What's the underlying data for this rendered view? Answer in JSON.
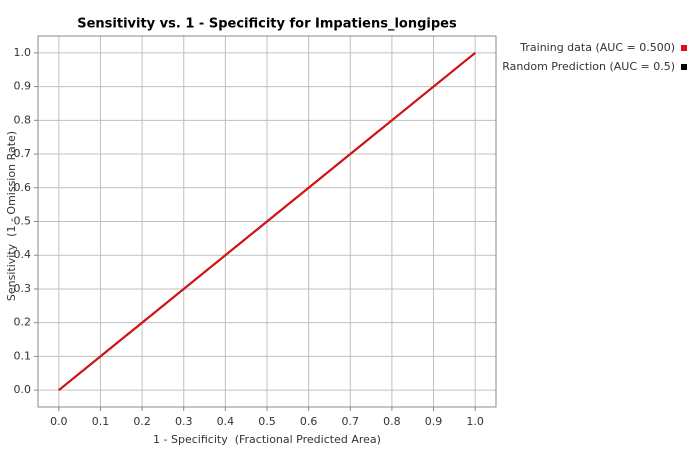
{
  "chart_data": {
    "type": "line",
    "title": "Sensitivity vs. 1 - Specificity for Impatiens_longipes",
    "x_label": "1 - Specificity  (Fractional Predicted Area)",
    "y_label": "Sensitivity  (1 - Omission Rate)",
    "x": [
      0,
      1
    ],
    "series": [
      {
        "name": "Training data (AUC = 0.500)",
        "color": "#dd1111",
        "values": [
          0,
          1
        ]
      },
      {
        "name": "Random Prediction (AUC = 0.5)",
        "color": "#000000",
        "values": [
          0,
          1
        ]
      }
    ],
    "xlim": [
      -0.05,
      1.05
    ],
    "ylim": [
      -0.05,
      1.05
    ],
    "xticks": [
      {
        "value": 0,
        "label": "0.0"
      },
      0.1,
      0.2,
      0.3,
      0.4,
      0.5,
      0.6,
      0.7,
      0.8,
      0.9,
      {
        "value": 1,
        "label": "1.0"
      }
    ],
    "yticks": [
      {
        "value": 0,
        "label": "0.0"
      },
      0.1,
      0.2,
      0.3,
      0.4,
      0.5,
      0.6,
      0.7,
      0.8,
      0.9,
      {
        "value": 1,
        "label": "1.0"
      }
    ],
    "grid": true,
    "legend_position": "top-right"
  }
}
